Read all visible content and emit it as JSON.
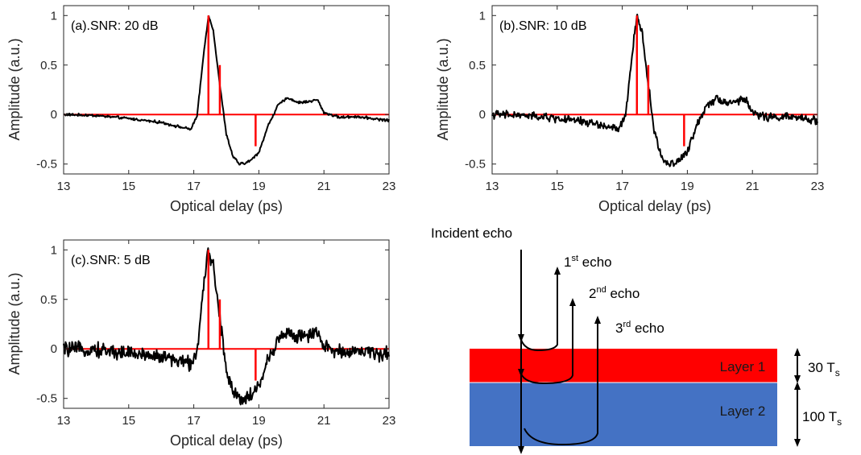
{
  "chart_data": [
    {
      "type": "line",
      "title": "(a).SNR: 20 dB",
      "xlabel": "Optical delay (ps)",
      "ylabel": "Amplitude (a.u.)",
      "xlim": [
        13,
        23
      ],
      "ylim": [
        -0.6,
        1.1
      ],
      "xticks": [
        "13",
        "15",
        "17",
        "19",
        "21",
        "23"
      ],
      "yticks": [
        "-0.5",
        "0",
        "0.5",
        "1"
      ],
      "noise": 0.008,
      "series": [
        {
          "type": "line",
          "color": "#000000",
          "x": [
            13,
            14,
            15,
            16,
            16.5,
            16.9,
            17.1,
            17.3,
            17.45,
            17.6,
            17.8,
            18.0,
            18.2,
            18.4,
            18.6,
            18.8,
            19.0,
            19.3,
            19.6,
            19.9,
            20.2,
            20.5,
            20.8,
            21.0,
            21.5,
            22.0,
            22.5,
            23
          ],
          "y": [
            0.0,
            -0.01,
            -0.04,
            -0.08,
            -0.12,
            -0.15,
            -0.02,
            0.6,
            1.0,
            0.85,
            0.3,
            -0.2,
            -0.42,
            -0.5,
            -0.49,
            -0.45,
            -0.38,
            -0.1,
            0.1,
            0.17,
            0.12,
            0.13,
            0.15,
            0.02,
            -0.03,
            -0.02,
            -0.04,
            -0.06
          ]
        },
        {
          "type": "stem",
          "color": "#ff0000",
          "x": [
            17.45,
            17.8,
            18.9
          ],
          "y": [
            1.0,
            0.5,
            -0.32
          ]
        }
      ]
    },
    {
      "type": "line",
      "title": "(b).SNR: 10 dB",
      "xlabel": "Optical delay (ps)",
      "ylabel": "Amplitude (a.u.)",
      "xlim": [
        13,
        23
      ],
      "ylim": [
        -0.6,
        1.1
      ],
      "xticks": [
        "13",
        "15",
        "17",
        "19",
        "21",
        "23"
      ],
      "yticks": [
        "-0.5",
        "0",
        "0.5",
        "1"
      ],
      "noise": 0.025,
      "series": [
        {
          "type": "line",
          "color": "#000000",
          "x": [
            13,
            14,
            15,
            16,
            16.5,
            16.9,
            17.1,
            17.3,
            17.45,
            17.6,
            17.8,
            18.0,
            18.2,
            18.4,
            18.6,
            18.8,
            19.0,
            19.3,
            19.6,
            19.9,
            20.2,
            20.5,
            20.8,
            21.0,
            21.5,
            22.0,
            22.5,
            23
          ],
          "y": [
            0.0,
            -0.01,
            -0.04,
            -0.08,
            -0.12,
            -0.15,
            -0.02,
            0.6,
            1.0,
            0.85,
            0.3,
            -0.2,
            -0.42,
            -0.5,
            -0.49,
            -0.45,
            -0.38,
            -0.1,
            0.1,
            0.17,
            0.12,
            0.13,
            0.15,
            0.02,
            -0.03,
            -0.02,
            -0.04,
            -0.06
          ]
        },
        {
          "type": "stem",
          "color": "#ff0000",
          "x": [
            17.45,
            17.8,
            18.9
          ],
          "y": [
            1.0,
            0.5,
            -0.32
          ]
        }
      ]
    },
    {
      "type": "line",
      "title": "(c).SNR: 5 dB",
      "xlabel": "Optical delay (ps)",
      "ylabel": "Amplitude (a.u.)",
      "xlim": [
        13,
        23
      ],
      "ylim": [
        -0.6,
        1.1
      ],
      "xticks": [
        "13",
        "15",
        "17",
        "19",
        "21",
        "23"
      ],
      "yticks": [
        "-0.5",
        "0",
        "0.5",
        "1"
      ],
      "noise": 0.045,
      "series": [
        {
          "type": "line",
          "color": "#000000",
          "x": [
            13,
            14,
            15,
            16,
            16.5,
            16.9,
            17.1,
            17.3,
            17.45,
            17.6,
            17.8,
            18.0,
            18.2,
            18.4,
            18.6,
            18.8,
            19.0,
            19.3,
            19.6,
            19.9,
            20.2,
            20.5,
            20.8,
            21.0,
            21.5,
            22.0,
            22.5,
            23
          ],
          "y": [
            0.0,
            -0.01,
            -0.04,
            -0.08,
            -0.12,
            -0.15,
            -0.02,
            0.6,
            1.0,
            0.85,
            0.3,
            -0.2,
            -0.42,
            -0.5,
            -0.49,
            -0.45,
            -0.38,
            -0.1,
            0.1,
            0.17,
            0.12,
            0.13,
            0.15,
            0.02,
            -0.03,
            -0.02,
            -0.04,
            -0.06
          ]
        },
        {
          "type": "stem",
          "color": "#ff0000",
          "x": [
            17.45,
            17.8,
            18.9
          ],
          "y": [
            1.0,
            0.5,
            -0.32
          ]
        }
      ]
    }
  ],
  "diagram": {
    "incident_label": "Incident echo",
    "echoes": [
      {
        "main": "1",
        "sup": "st",
        "rest": " echo"
      },
      {
        "main": "2",
        "sup": "nd",
        "rest": " echo"
      },
      {
        "main": "3",
        "sup": "rd",
        "rest": " echo"
      }
    ],
    "layers": [
      {
        "label": "Layer 1",
        "color": "#ff0000",
        "thickness_main": "30 T",
        "thickness_sub": "s"
      },
      {
        "label": "Layer 2",
        "color": "#4472c4",
        "thickness_main": "100 T",
        "thickness_sub": "s"
      }
    ]
  }
}
